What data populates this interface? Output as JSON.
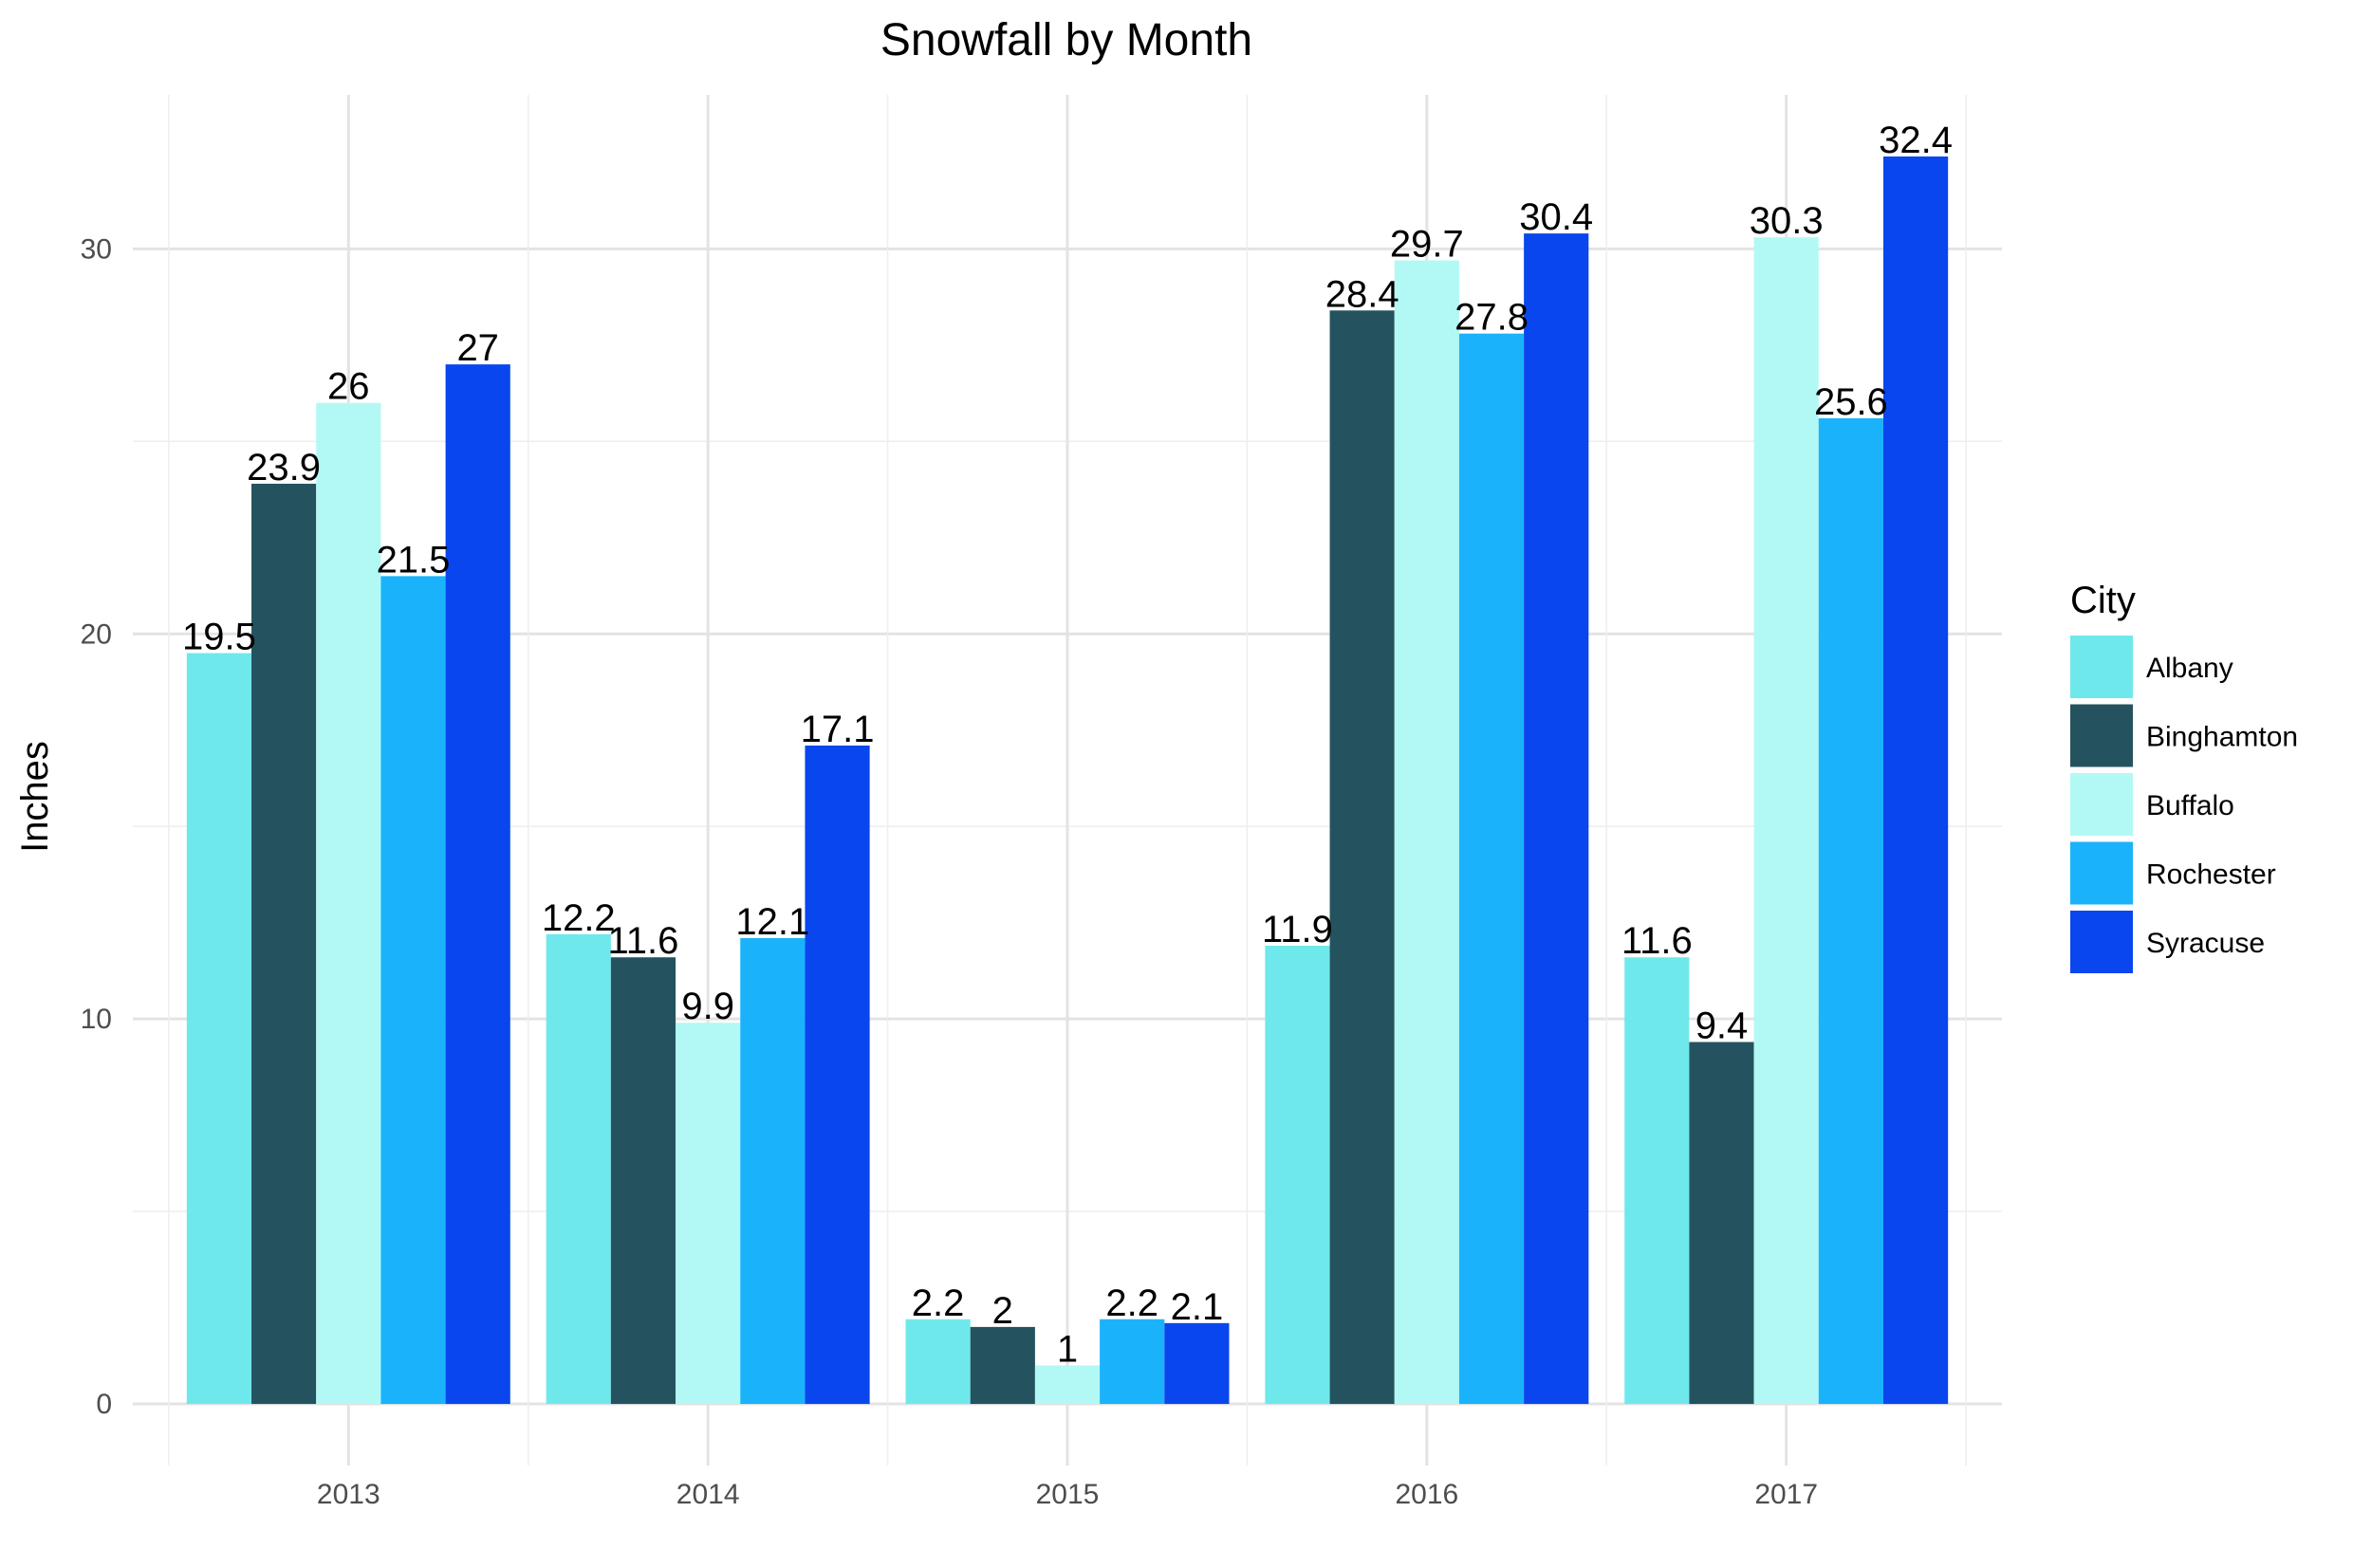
{
  "chart_data": {
    "type": "bar",
    "title": "Snowfall by Month",
    "xlabel": "",
    "ylabel": "Inches",
    "categories": [
      "2013",
      "2014",
      "2015",
      "2016",
      "2017"
    ],
    "series": [
      {
        "name": "Albany",
        "color": "#6FE8EC",
        "values": [
          19.5,
          12.2,
          2.2,
          11.9,
          11.6
        ]
      },
      {
        "name": "Binghamton",
        "color": "#24535F",
        "values": [
          23.9,
          11.6,
          2,
          28.4,
          9.4
        ]
      },
      {
        "name": "Buffalo",
        "color": "#B2F9F5",
        "values": [
          26,
          9.9,
          1,
          29.7,
          30.3
        ]
      },
      {
        "name": "Rochester",
        "color": "#1AB3FB",
        "values": [
          21.5,
          12.1,
          2.2,
          27.8,
          25.6
        ]
      },
      {
        "name": "Syracuse",
        "color": "#0A46ED",
        "values": [
          27,
          17.1,
          2.1,
          30.4,
          32.4
        ]
      }
    ],
    "ylim": [
      -1.6,
      34.0
    ],
    "yticks": [
      0,
      10,
      20,
      30
    ],
    "grid": true,
    "legend": {
      "title": "City",
      "position": "right"
    }
  }
}
